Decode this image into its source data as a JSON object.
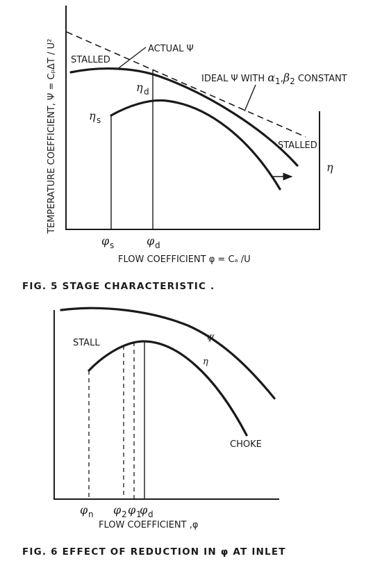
{
  "fig5": {
    "y_axis_label": "TEMPERATURE COEFFICIENT, Ψ = CₚΔT / U²",
    "x_axis_label": "FLOW  COEFFICIENT   φ = Cₐ /U",
    "eta_axis_label": "η",
    "stalled_left": "STALLED",
    "stalled_right": "STALLED",
    "actual_psi": "ACTUAL Ψ",
    "ideal_psi_prefix": "IDEAL Ψ  WITH ",
    "alpha": "α",
    "alpha_sub": "1",
    "beta": "β",
    "beta_sub": "2",
    "ideal_psi_suffix": " CONSTANT",
    "eta_s": "η",
    "eta_s_sub": "s",
    "eta_d": "η",
    "eta_d_sub": "d",
    "phi_s": "φ",
    "phi_s_sub": "s",
    "phi_d": "φ",
    "phi_d_sub": "d",
    "caption": "FIG. 5    STAGE  CHARACTERISTIC ."
  },
  "fig6": {
    "stall": "STALL",
    "psi": "Ψ",
    "eta": "η",
    "choke": "CHOKE",
    "phi_n": "φ",
    "phi_n_sub": "n",
    "phi_2": "φ",
    "phi_2_sub": "2",
    "phi_1": "φ",
    "phi_1_sub": "1",
    "phi_d": "φ",
    "phi_d_sub": "d",
    "x_axis_label": "FLOW  COEFFICIENT  ,φ",
    "caption": "FIG. 6  EFFECT  OF  REDUCTION  IN  φ  AT  INLET"
  }
}
